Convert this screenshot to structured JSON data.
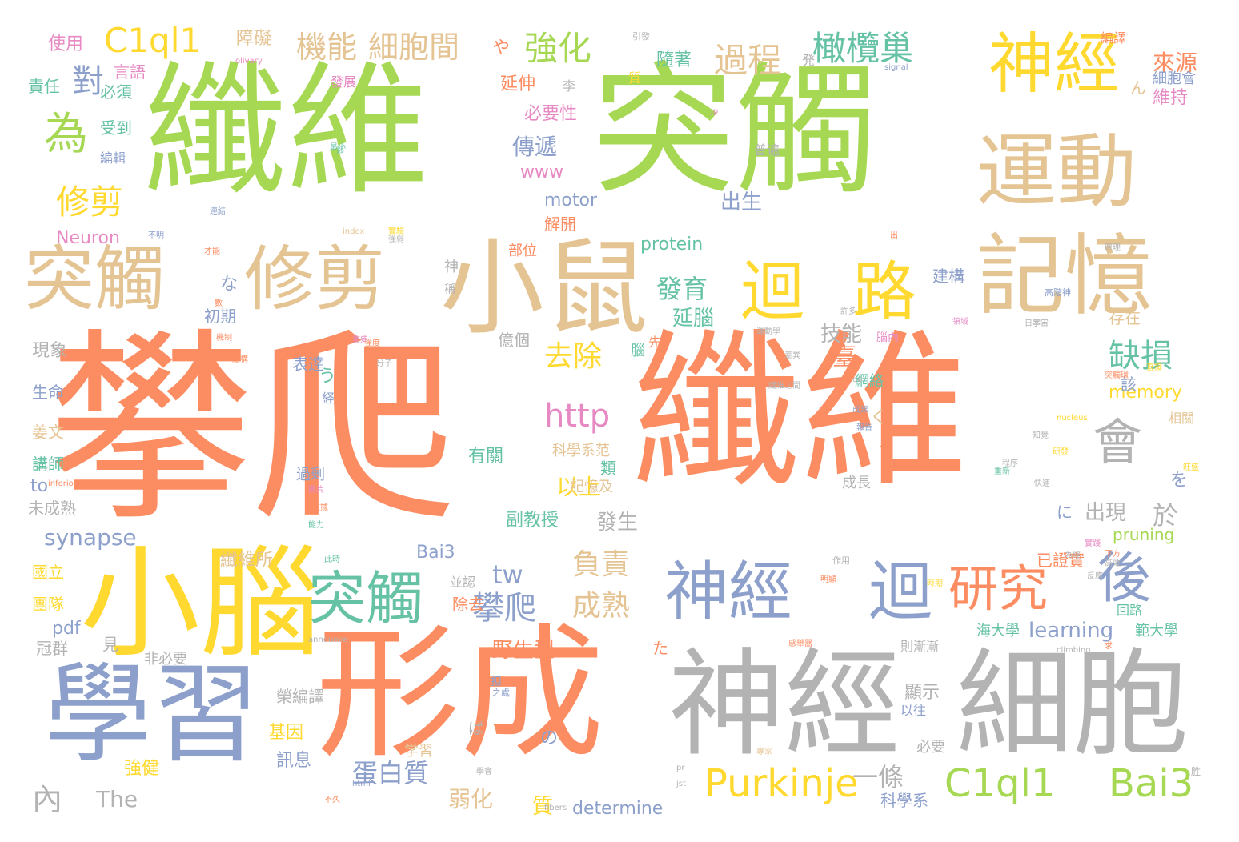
{
  "words": [
    {
      "text": "攀爬",
      "color": "#FC8D62"
    },
    {
      "text": "纖維",
      "color": "#FC8D62"
    },
    {
      "text": "纖維",
      "color": "#A6D854"
    },
    {
      "text": "突觸",
      "color": "#A6D854"
    },
    {
      "text": "形成",
      "color": "#FC8D62"
    },
    {
      "text": "神經",
      "color": "#B3B3B3"
    },
    {
      "text": "細胞",
      "color": "#B3B3B3"
    },
    {
      "text": "學習",
      "color": "#8DA0CB"
    },
    {
      "text": "小腦",
      "color": "#FFD92F"
    },
    {
      "text": "小鼠",
      "color": "#E5C494"
    },
    {
      "text": "修剪",
      "color": "#E5C494"
    },
    {
      "text": "突觸",
      "color": "#E5C494"
    },
    {
      "text": "運動",
      "color": "#E5C494"
    },
    {
      "text": "記憶",
      "color": "#E5C494"
    },
    {
      "text": "神經",
      "color": "#FFD92F"
    },
    {
      "text": "迴",
      "color": "#FFD92F"
    },
    {
      "text": "路",
      "color": "#FFD92F"
    },
    {
      "text": "神經",
      "color": "#8DA0CB"
    },
    {
      "text": "迴",
      "color": "#8DA0CB"
    },
    {
      "text": "突觸",
      "color": "#66C2A5"
    },
    {
      "text": "研究",
      "color": "#FC8D62"
    },
    {
      "text": "後",
      "color": "#8DA0CB"
    },
    {
      "text": "會",
      "color": "#B3B3B3"
    },
    {
      "text": "為",
      "color": "#A6D854"
    },
    {
      "text": "修剪",
      "color": "#FFD92F"
    },
    {
      "text": "C1ql1",
      "color": "#FFD92F"
    },
    {
      "text": "機能",
      "color": "#E5C494"
    },
    {
      "text": "細胞間",
      "color": "#E5C494"
    },
    {
      "text": "強化",
      "color": "#A6D854"
    },
    {
      "text": "過程",
      "color": "#E5C494"
    },
    {
      "text": "橄欖巢",
      "color": "#66C2A5"
    },
    {
      "text": "對",
      "color": "#8DA0CB"
    },
    {
      "text": "缺損",
      "color": "#66C2A5"
    },
    {
      "text": "去除",
      "color": "#FFD92F"
    },
    {
      "text": "發育",
      "color": "#66C2A5"
    },
    {
      "text": "http",
      "color": "#E78AC3"
    },
    {
      "text": "Purkinje",
      "color": "#FFD92F"
    },
    {
      "text": "C1ql1",
      "color": "#A6D854"
    },
    {
      "text": "Bai3",
      "color": "#A6D854"
    },
    {
      "text": "攀爬",
      "color": "#8DA0CB"
    },
    {
      "text": "成熟",
      "color": "#E5C494"
    },
    {
      "text": "負責",
      "color": "#E5C494"
    },
    {
      "text": "tw",
      "color": "#8DA0CB"
    },
    {
      "text": "蛋白質",
      "color": "#8DA0CB"
    },
    {
      "text": "一條",
      "color": "#B3B3B3"
    },
    {
      "text": "出現",
      "color": "#B3B3B3"
    },
    {
      "text": "於",
      "color": "#B3B3B3"
    },
    {
      "text": "傳遞",
      "color": "#8DA0CB"
    },
    {
      "text": "synapse",
      "color": "#8DA0CB"
    },
    {
      "text": "技能",
      "color": "#B3B3B3"
    },
    {
      "text": "來源",
      "color": "#FC8D62"
    },
    {
      "text": "內",
      "color": "#B3B3B3"
    },
    {
      "text": "The",
      "color": "#B3B3B3"
    },
    {
      "text": "弱化",
      "color": "#E5C494"
    },
    {
      "text": "determine",
      "color": "#8DA0CB"
    },
    {
      "text": "科學系",
      "color": "#8DA0CB"
    },
    {
      "text": "learning",
      "color": "#8DA0CB"
    },
    {
      "text": "memory",
      "color": "#FFD92F"
    },
    {
      "text": "www",
      "color": "#E78AC3"
    },
    {
      "text": "motor",
      "color": "#8DA0CB"
    },
    {
      "text": "Neuron",
      "color": "#E78AC3"
    },
    {
      "text": "protein",
      "color": "#66C2A5"
    },
    {
      "text": "pruning",
      "color": "#A6D854"
    },
    {
      "text": "Bai3",
      "color": "#8DA0CB"
    },
    {
      "text": "pdf",
      "color": "#8DA0CB"
    },
    {
      "text": "to",
      "color": "#8DA0CB"
    },
    {
      "text": "使用",
      "color": "#E78AC3"
    },
    {
      "text": "言語",
      "color": "#E78AC3"
    },
    {
      "text": "責任",
      "color": "#66C2A5"
    },
    {
      "text": "必須",
      "color": "#66C2A5"
    },
    {
      "text": "受到",
      "color": "#66C2A5"
    },
    {
      "text": "編輯",
      "color": "#8DA0CB"
    },
    {
      "text": "障礙",
      "color": "#E5C494"
    },
    {
      "text": "隨著",
      "color": "#66C2A5"
    },
    {
      "text": "延伸",
      "color": "#FC8D62"
    },
    {
      "text": "必要性",
      "color": "#E78AC3"
    },
    {
      "text": "出生",
      "color": "#8DA0CB"
    },
    {
      "text": "解開",
      "color": "#FC8D62"
    },
    {
      "text": "延腦",
      "color": "#66C2A5"
    },
    {
      "text": "存在",
      "color": "#E5C494"
    },
    {
      "text": "建構",
      "color": "#8DA0CB"
    },
    {
      "text": "初期",
      "color": "#8DA0CB"
    },
    {
      "text": "現象",
      "color": "#B3B3B3"
    },
    {
      "text": "表達",
      "color": "#8DA0CB"
    },
    {
      "text": "生命",
      "color": "#8DA0CB"
    },
    {
      "text": "姜文",
      "color": "#E5C494"
    },
    {
      "text": "講師",
      "color": "#66C2A5"
    },
    {
      "text": "未成熟",
      "color": "#B3B3B3"
    },
    {
      "text": "國立",
      "color": "#FFD92F"
    },
    {
      "text": "團隊",
      "color": "#FFD92F"
    },
    {
      "text": "冠群",
      "color": "#B3B3B3"
    },
    {
      "text": "見",
      "color": "#B3B3B3"
    },
    {
      "text": "非必要",
      "color": "#B3B3B3"
    },
    {
      "text": "纖維所",
      "color": "#E5C494"
    },
    {
      "text": "並認",
      "color": "#B3B3B3"
    },
    {
      "text": "除去",
      "color": "#FC8D62"
    },
    {
      "text": "野生型",
      "color": "#FC8D62"
    },
    {
      "text": "發生",
      "color": "#B3B3B3"
    },
    {
      "text": "副教授",
      "color": "#66C2A5"
    },
    {
      "text": "以上",
      "color": "#FFD92F"
    },
    {
      "text": "有關",
      "color": "#66C2A5"
    },
    {
      "text": "科學系范",
      "color": "#E5C494"
    },
    {
      "text": "類",
      "color": "#66C2A5"
    },
    {
      "text": "記憶及",
      "color": "#E5C494"
    },
    {
      "text": "榮編譯",
      "color": "#B3B3B3"
    },
    {
      "text": "基因",
      "color": "#FFD92F"
    },
    {
      "text": "訊息",
      "color": "#8DA0CB"
    },
    {
      "text": "強健",
      "color": "#FFD92F"
    },
    {
      "text": "維持",
      "color": "#E78AC3"
    },
    {
      "text": "細胞會",
      "color": "#8DA0CB"
    },
    {
      "text": "編譯",
      "color": "#FC8D62"
    },
    {
      "text": "發展",
      "color": "#E78AC3"
    },
    {
      "text": "普遍",
      "color": "#B3B3B3"
    },
    {
      "text": "成長",
      "color": "#B3B3B3"
    },
    {
      "text": "海大學",
      "color": "#66C2A5"
    },
    {
      "text": "範大學",
      "color": "#66C2A5"
    },
    {
      "text": "回路",
      "color": "#66C2A5"
    },
    {
      "text": "相關",
      "color": "#E5C494"
    },
    {
      "text": "臺",
      "color": "#FC8D62"
    },
    {
      "text": "該",
      "color": "#8DA0CB"
    },
    {
      "text": "網絡",
      "color": "#66C2A5"
    },
    {
      "text": "已證實",
      "color": "#FC8D62"
    },
    {
      "text": "則漸漸",
      "color": "#B3B3B3"
    },
    {
      "text": "顯示",
      "color": "#B3B3B3"
    },
    {
      "text": "以往",
      "color": "#8DA0CB"
    },
    {
      "text": "必要",
      "color": "#B3B3B3"
    },
    {
      "text": "過剰",
      "color": "#8DA0CB"
    },
    {
      "text": "学習",
      "color": "#E5C494"
    },
    {
      "text": "億個",
      "color": "#B3B3B3"
    },
    {
      "text": "質",
      "color": "#FFD92F"
    },
    {
      "text": "李",
      "color": "#B3B3B3"
    },
    {
      "text": "発",
      "color": "#B3B3B3"
    },
    {
      "text": "や",
      "color": "#FC8D62"
    },
    {
      "text": "ん",
      "color": "#E5C494"
    },
    {
      "text": "な",
      "color": "#8DA0CB"
    },
    {
      "text": "う",
      "color": "#66C2A5"
    },
    {
      "text": "経",
      "color": "#8DA0CB"
    },
    {
      "text": "く",
      "color": "#E5C494"
    },
    {
      "text": "人",
      "color": "#FC8D62"
    },
    {
      "text": "を",
      "color": "#8DA0CB"
    },
    {
      "text": "に",
      "color": "#8DA0CB"
    },
    {
      "text": "た",
      "color": "#FC8D62"
    },
    {
      "text": "の",
      "color": "#8DA0CB"
    },
    {
      "text": "ば",
      "color": "#B3B3B3"
    },
    {
      "text": "神",
      "color": "#B3B3B3"
    },
    {
      "text": "稱",
      "color": "#B3B3B3"
    },
    {
      "text": "部位",
      "color": "#FC8D62"
    },
    {
      "text": "腦",
      "color": "#66C2A5"
    },
    {
      "text": "先",
      "color": "#FC8D62"
    },
    {
      "text": "腦內",
      "color": "#E78AC3"
    },
    {
      "text": "許多",
      "color": "#B3B3B3"
    },
    {
      "text": "olivary",
      "color": "#E78AC3"
    },
    {
      "text": "signal",
      "color": "#8DA0CB"
    },
    {
      "text": "引發",
      "color": "#B3B3B3"
    },
    {
      "text": "index",
      "color": "#E5C494"
    },
    {
      "text": "nucleus",
      "color": "#FFD92F"
    },
    {
      "text": "climbing",
      "color": "#B3B3B3"
    },
    {
      "text": "fibers",
      "color": "#B3B3B3"
    },
    {
      "text": "inferior",
      "color": "#FC8D62"
    },
    {
      "text": "announce",
      "color": "#B3B3B3"
    },
    {
      "text": "html",
      "color": "#8DA0CB"
    },
    {
      "text": "jst",
      "color": "#B3B3B3"
    },
    {
      "text": "pr",
      "color": "#B3B3B3"
    },
    {
      "text": "go",
      "color": "#B3B3B3"
    },
    {
      "text": "jp",
      "color": "#E78AC3"
    },
    {
      "text": "之處",
      "color": "#8DA0CB"
    },
    {
      "text": "担",
      "color": "#8DA0CB"
    },
    {
      "text": "作用",
      "color": "#B3B3B3"
    },
    {
      "text": "高階神",
      "color": "#8DA0CB"
    },
    {
      "text": "不明",
      "color": "#8DA0CB"
    },
    {
      "text": "才能",
      "color": "#FC8D62"
    },
    {
      "text": "不久",
      "color": "#FC8D62"
    },
    {
      "text": "最小",
      "color": "#66C2A5"
    },
    {
      "text": "實驗",
      "color": "#FFD92F"
    },
    {
      "text": "此時",
      "color": "#66C2A5"
    },
    {
      "text": "強弱",
      "color": "#B3B3B3"
    },
    {
      "text": "連結",
      "color": "#8DA0CB"
    },
    {
      "text": "日本",
      "color": "#B3B3B3"
    },
    {
      "text": "突觸環",
      "color": "#FC8D62"
    },
    {
      "text": "運動學",
      "color": "#B3B3B3"
    },
    {
      "text": "直接",
      "color": "#FFD92F"
    },
    {
      "text": "下方",
      "color": "#FC8D62"
    },
    {
      "text": "明顯",
      "color": "#FC8D62"
    },
    {
      "text": "感舉器",
      "color": "#FC8D62"
    },
    {
      "text": "實踐",
      "color": "#E78AC3"
    },
    {
      "text": "宇宙",
      "color": "#B3B3B3"
    },
    {
      "text": "知覺",
      "color": "#B3B3B3"
    },
    {
      "text": "學會",
      "color": "#B3B3B3"
    },
    {
      "text": "反應",
      "color": "#B3B3B3"
    },
    {
      "text": "旺盛",
      "color": "#FFD92F"
    },
    {
      "text": "高效",
      "color": "#B3B3B3"
    },
    {
      "text": "快速",
      "color": "#B3B3B3"
    },
    {
      "text": "求",
      "color": "#FC8D62"
    },
    {
      "text": "胜",
      "color": "#B3B3B3"
    },
    {
      "text": "出",
      "color": "#FC8D62"
    },
    {
      "text": "為經",
      "color": "#B3B3B3"
    },
    {
      "text": "原理",
      "color": "#B3B3B3"
    },
    {
      "text": "研發",
      "color": "#FFD92F"
    },
    {
      "text": "領域",
      "color": "#E78AC3"
    },
    {
      "text": "專家",
      "color": "#E5C494"
    },
    {
      "text": "圖片",
      "color": "#E78AC3"
    },
    {
      "text": "數據",
      "color": "#FC8D62"
    },
    {
      "text": "能力",
      "color": "#66C2A5"
    },
    {
      "text": "成果",
      "color": "#8DA0CB"
    },
    {
      "text": "報告",
      "color": "#8DA0CB"
    },
    {
      "text": "重新",
      "color": "#66C2A5"
    },
    {
      "text": "程序",
      "color": "#B3B3B3"
    },
    {
      "text": "差異",
      "color": "#B3B3B3"
    },
    {
      "text": "結構",
      "color": "#FC8D62"
    },
    {
      "text": "重要",
      "color": "#E78AC3"
    },
    {
      "text": "強度",
      "color": "#FC8D62"
    },
    {
      "text": "分子",
      "color": "#B3B3B3"
    },
    {
      "text": "時期",
      "color": "#FFD92F"
    },
    {
      "text": "弱",
      "color": "#66C2A5"
    },
    {
      "text": "質",
      "color": "#FFD92F"
    },
    {
      "text": "纖維之間",
      "color": "#B3B3B3"
    },
    {
      "text": "數",
      "color": "#FC8D62"
    },
    {
      "text": "機制",
      "color": "#FC8D62"
    }
  ]
}
